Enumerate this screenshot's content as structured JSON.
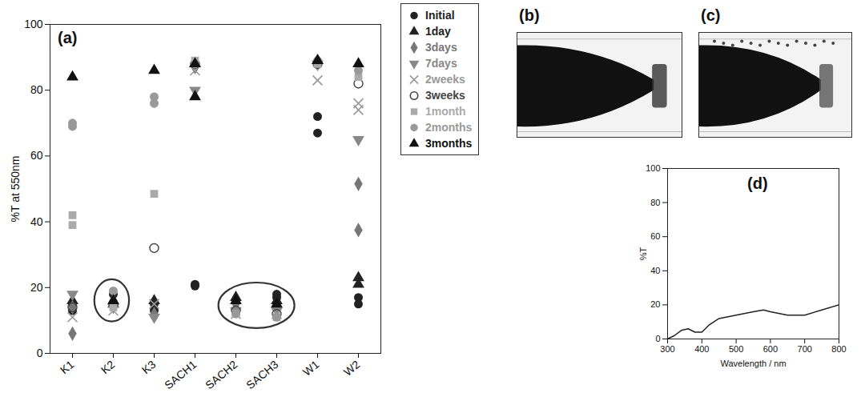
{
  "chart_data": [
    {
      "type": "scatter",
      "panel": "(a)",
      "categories": [
        "K1",
        "K2",
        "K3",
        "SACH1",
        "SACH2",
        "SACH3",
        "W1",
        "W2"
      ],
      "y_label": "%T at 550nm",
      "ylim": [
        0,
        100
      ],
      "yticks": [
        0,
        20,
        40,
        60,
        80,
        100
      ],
      "legend": "right",
      "series": [
        {
          "name": "Initial",
          "color": "#222222",
          "marker": "circle",
          "values": [
            [
              13,
              15
            ],
            [
              18
            ],
            [
              13,
              15
            ],
            [
              20.5,
              21
            ],
            [
              16
            ],
            [
              17,
              18
            ],
            [
              72,
              67
            ],
            [
              17,
              15
            ]
          ]
        },
        {
          "name": "1day",
          "color": "#222222",
          "marker": "triangle",
          "values": [
            [
              16
            ],
            [
              15
            ],
            [
              16
            ],
            [
              88
            ],
            [
              17
            ],
            [
              16
            ],
            [
              89
            ],
            [
              23,
              21
            ]
          ]
        },
        {
          "name": "3days",
          "color": "#777777",
          "marker": "diamond",
          "values": [
            [
              6,
              14
            ],
            [
              16
            ],
            [
              12
            ],
            [
              87
            ],
            [
              15
            ],
            [
              14
            ],
            [
              88
            ],
            [
              51.5,
              37.5
            ]
          ]
        },
        {
          "name": "7days",
          "color": "#888888",
          "marker": "triangle-down",
          "values": [
            [
              18
            ],
            [
              14
            ],
            [
              11
            ],
            [
              80
            ],
            [
              13
            ],
            [
              13
            ],
            [
              88
            ],
            [
              65
            ]
          ]
        },
        {
          "name": "2weeks",
          "color": "#999999",
          "marker": "x",
          "values": [
            [
              11
            ],
            [
              13
            ],
            [
              15
            ],
            [
              86
            ],
            [
              12
            ],
            [
              12
            ],
            [
              83
            ],
            [
              76,
              74
            ]
          ]
        },
        {
          "name": "3weeks",
          "color": "#444444",
          "marker": "circle-open",
          "values": [
            [
              14
            ],
            [
              15
            ],
            [
              32
            ],
            [
              88
            ],
            [
              13
            ],
            [
              12
            ],
            [
              88
            ],
            [
              82
            ]
          ]
        },
        {
          "name": "1month",
          "color": "#aaaaaa",
          "marker": "square",
          "values": [
            [
              42,
              39
            ],
            [
              14
            ],
            [
              48.5
            ],
            [
              89
            ],
            [
              12
            ],
            [
              11
            ],
            [
              88
            ],
            [
              84
            ]
          ]
        },
        {
          "name": "2months",
          "color": "#999999",
          "marker": "circle",
          "values": [
            [
              70,
              69
            ],
            [
              19
            ],
            [
              78,
              76
            ],
            [
              88
            ],
            [
              12
            ],
            [
              11
            ],
            [
              89
            ],
            [
              86
            ]
          ]
        },
        {
          "name": "3months",
          "color": "#111111",
          "marker": "triangle",
          "values": [
            [
              84
            ],
            [
              16
            ],
            [
              86
            ],
            [
              78,
              88
            ],
            [
              16
            ],
            [
              15
            ],
            [
              89
            ],
            [
              88
            ]
          ]
        }
      ]
    },
    {
      "type": "line",
      "panel": "(d)",
      "x_label": "Wavelength / nm",
      "y_label": "%T",
      "x": [
        300,
        320,
        340,
        360,
        380,
        400,
        420,
        450,
        500,
        550,
        580,
        600,
        650,
        700,
        750,
        800
      ],
      "values": [
        0,
        2,
        5,
        6,
        4,
        4,
        8,
        12,
        14,
        16,
        17,
        16,
        14,
        14,
        17,
        20
      ],
      "color": "#222222",
      "line_style": "solid",
      "xlim": [
        300,
        800
      ],
      "xticks": [
        300,
        400,
        500,
        600,
        700,
        800
      ],
      "ylim": [
        0,
        100
      ],
      "yticks": [
        0,
        20,
        40,
        60,
        80,
        100
      ]
    }
  ],
  "images": [
    {
      "panel": "(b)"
    },
    {
      "panel": "(c)"
    }
  ]
}
